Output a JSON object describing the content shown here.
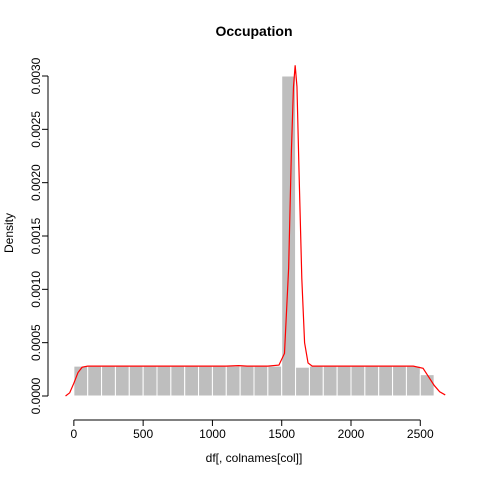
{
  "chart_data": {
    "type": "bar",
    "title": "Occupation",
    "xlabel": "df[, colnames[col]]",
    "ylabel": "Density",
    "xlim": [
      -100,
      2700
    ],
    "ylim": [
      0,
      0.00315
    ],
    "x_ticks": [
      0,
      500,
      1000,
      1500,
      2000,
      2500
    ],
    "x_tick_labels": [
      "0",
      "500",
      "1000",
      "1500",
      "2000",
      "2500"
    ],
    "y_ticks": [
      0,
      0.0005,
      0.001,
      0.0015,
      0.002,
      0.0025,
      0.003
    ],
    "y_tick_labels": [
      "0.0000",
      "0.0005",
      "0.0010",
      "0.0015",
      "0.0020",
      "0.0025",
      "0.0030"
    ],
    "bar_color": "#bebebe",
    "bar_border_color": "#ffffff",
    "density_color": "#ff0000",
    "bins": [
      {
        "x0": 0,
        "x1": 100,
        "value": 0.00028
      },
      {
        "x0": 100,
        "x1": 200,
        "value": 0.00028
      },
      {
        "x0": 200,
        "x1": 300,
        "value": 0.00028
      },
      {
        "x0": 300,
        "x1": 400,
        "value": 0.00028
      },
      {
        "x0": 400,
        "x1": 500,
        "value": 0.00028
      },
      {
        "x0": 500,
        "x1": 600,
        "value": 0.00028
      },
      {
        "x0": 600,
        "x1": 700,
        "value": 0.00028
      },
      {
        "x0": 700,
        "x1": 800,
        "value": 0.00028
      },
      {
        "x0": 800,
        "x1": 900,
        "value": 0.00028
      },
      {
        "x0": 900,
        "x1": 1000,
        "value": 0.00028
      },
      {
        "x0": 1000,
        "x1": 1100,
        "value": 0.00028
      },
      {
        "x0": 1100,
        "x1": 1200,
        "value": 0.00028
      },
      {
        "x0": 1200,
        "x1": 1300,
        "value": 0.00028
      },
      {
        "x0": 1300,
        "x1": 1400,
        "value": 0.00028
      },
      {
        "x0": 1400,
        "x1": 1500,
        "value": 0.00028
      },
      {
        "x0": 1500,
        "x1": 1600,
        "value": 0.003
      },
      {
        "x0": 1600,
        "x1": 1700,
        "value": 0.00027
      },
      {
        "x0": 1700,
        "x1": 1800,
        "value": 0.00028
      },
      {
        "x0": 1800,
        "x1": 1900,
        "value": 0.00028
      },
      {
        "x0": 1900,
        "x1": 2000,
        "value": 0.00028
      },
      {
        "x0": 2000,
        "x1": 2100,
        "value": 0.00028
      },
      {
        "x0": 2100,
        "x1": 2200,
        "value": 0.00028
      },
      {
        "x0": 2200,
        "x1": 2300,
        "value": 0.00028
      },
      {
        "x0": 2300,
        "x1": 2400,
        "value": 0.00028
      },
      {
        "x0": 2400,
        "x1": 2500,
        "value": 0.00028
      },
      {
        "x0": 2500,
        "x1": 2600,
        "value": 0.0002
      }
    ],
    "density_curve": [
      [
        -60,
        0.0
      ],
      [
        -30,
        3e-05
      ],
      [
        0,
        0.00012
      ],
      [
        30,
        0.00022
      ],
      [
        60,
        0.00027
      ],
      [
        100,
        0.00028
      ],
      [
        300,
        0.00028
      ],
      [
        500,
        0.00028
      ],
      [
        700,
        0.00028
      ],
      [
        900,
        0.00028
      ],
      [
        1100,
        0.00028
      ],
      [
        1190,
        0.000285
      ],
      [
        1250,
        0.00028
      ],
      [
        1400,
        0.00028
      ],
      [
        1480,
        0.00029
      ],
      [
        1520,
        0.0004
      ],
      [
        1550,
        0.0012
      ],
      [
        1570,
        0.0023
      ],
      [
        1585,
        0.0029
      ],
      [
        1597,
        0.0031
      ],
      [
        1610,
        0.0029
      ],
      [
        1625,
        0.0021
      ],
      [
        1645,
        0.0011
      ],
      [
        1665,
        0.0005
      ],
      [
        1690,
        0.00031
      ],
      [
        1720,
        0.00028
      ],
      [
        1900,
        0.00028
      ],
      [
        2100,
        0.00028
      ],
      [
        2300,
        0.00028
      ],
      [
        2450,
        0.00028
      ],
      [
        2520,
        0.00026
      ],
      [
        2560,
        0.00018
      ],
      [
        2600,
        0.0001
      ],
      [
        2640,
        4e-05
      ],
      [
        2680,
        1e-05
      ]
    ]
  }
}
